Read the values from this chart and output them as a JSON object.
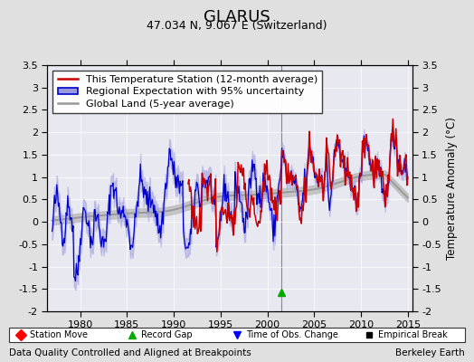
{
  "title": "GLARUS",
  "subtitle": "47.034 N, 9.067 E (Switzerland)",
  "ylabel": "Temperature Anomaly (°C)",
  "xlabel_bottom_left": "Data Quality Controlled and Aligned at Breakpoints",
  "xlabel_bottom_right": "Berkeley Earth",
  "ylim": [
    -2.0,
    3.5
  ],
  "xlim": [
    1976.5,
    2015.5
  ],
  "xticks": [
    1980,
    1985,
    1990,
    1995,
    2000,
    2005,
    2010,
    2015
  ],
  "yticks": [
    -2,
    -1.5,
    -1,
    -0.5,
    0,
    0.5,
    1,
    1.5,
    2,
    2.5,
    3,
    3.5
  ],
  "background_color": "#e8e8e8",
  "plot_bg_color": "#e8e8f0",
  "red_line_color": "#cc0000",
  "blue_line_color": "#0000cc",
  "blue_fill_color": "#9999dd",
  "gray_line_color": "#999999",
  "gray_fill_color": "#bbbbbb",
  "vertical_line_color": "#888888",
  "vertical_line_year": 2001.5,
  "green_triangle_year": 2001.5,
  "green_triangle_y": -1.57,
  "title_fontsize": 13,
  "subtitle_fontsize": 9,
  "legend_fontsize": 8,
  "tick_fontsize": 8,
  "annotation_fontsize": 7.5,
  "red_start_year": 1991.5,
  "blue_start_year": 1977.0,
  "end_year": 2014.9
}
